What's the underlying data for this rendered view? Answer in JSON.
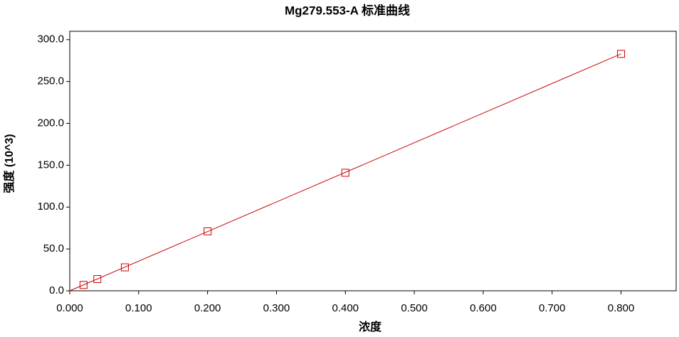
{
  "chart_data": {
    "type": "scatter",
    "title": "Mg279.553-A  标准曲线",
    "x_label": "浓度",
    "y_label": "强度 (10^3)",
    "series": [
      {
        "color": "#cc0000",
        "mode": "markers",
        "x": [
          0.02,
          0.04,
          0.08,
          0.2,
          0.4,
          0.8
        ],
        "values": [
          7,
          14,
          28,
          71,
          141,
          283
        ]
      },
      {
        "color": "#cc0000",
        "mode": "line",
        "x": [
          0,
          0.8
        ],
        "values": [
          0,
          283
        ]
      }
    ],
    "xlim": [
      0,
      0.88
    ],
    "ylim": [
      0,
      310
    ],
    "xticks": [
      {
        "value": 0,
        "label": "0.000"
      },
      {
        "value": 0.1,
        "label": "0.100"
      },
      {
        "value": 0.2,
        "label": "0.200"
      },
      {
        "value": 0.3,
        "label": "0.300"
      },
      {
        "value": 0.4,
        "label": "0.400"
      },
      {
        "value": 0.5,
        "label": "0.500"
      },
      {
        "value": 0.6,
        "label": "0.600"
      },
      {
        "value": 0.7,
        "label": "0.700"
      },
      {
        "value": 0.8,
        "label": "0.800"
      }
    ],
    "yticks": [
      {
        "value": 0,
        "label": "0.0"
      },
      {
        "value": 50,
        "label": "50.0"
      },
      {
        "value": 100,
        "label": "100.0"
      },
      {
        "value": 150,
        "label": "150.0"
      },
      {
        "value": 200,
        "label": "200.0"
      },
      {
        "value": 250,
        "label": "250.0"
      },
      {
        "value": 300,
        "label": "300.0"
      }
    ]
  }
}
